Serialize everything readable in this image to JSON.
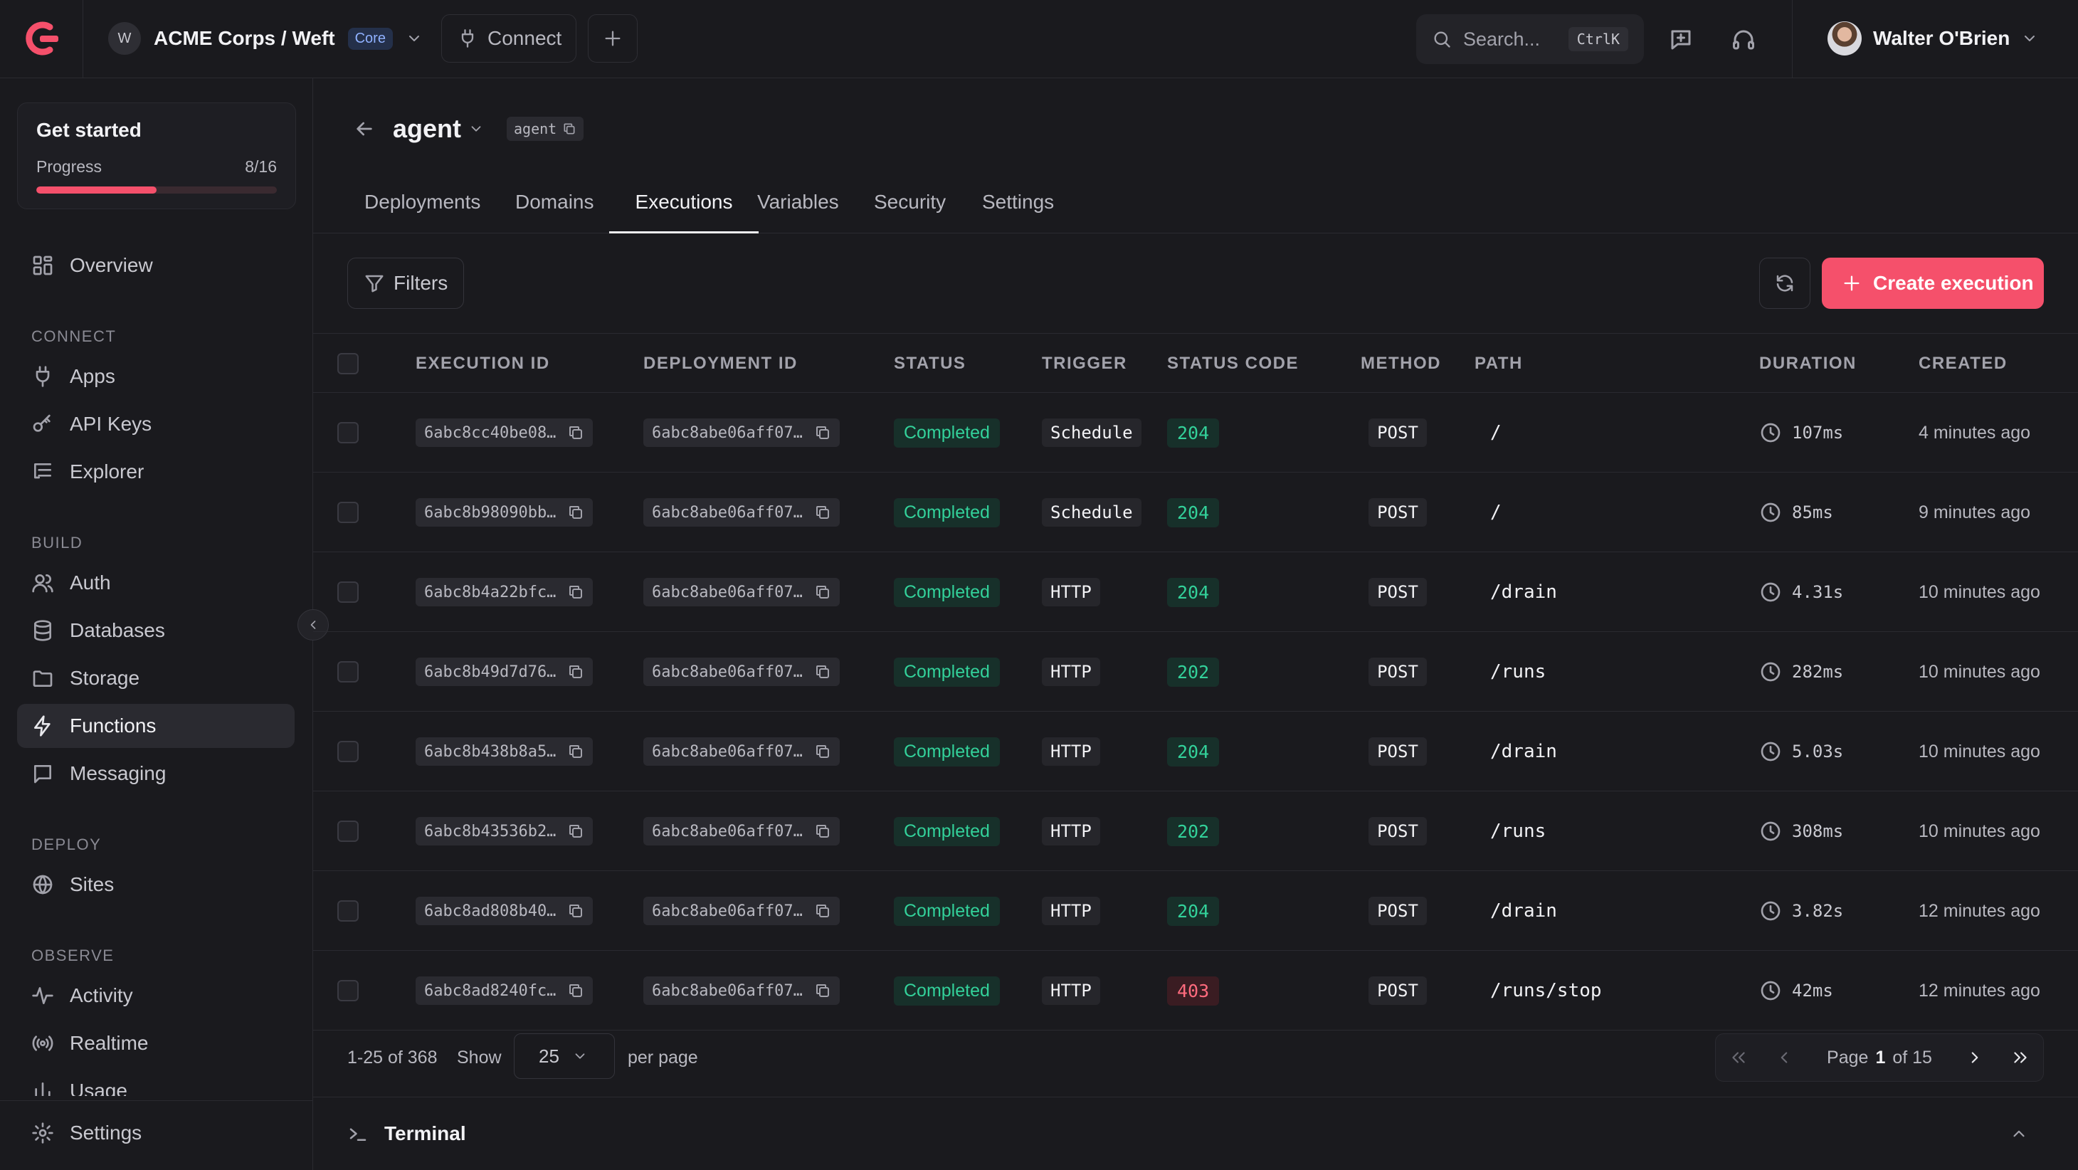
{
  "topbar": {
    "org_avatar": "W",
    "org_name": "ACME Corps / Weft",
    "org_badge": "Core",
    "connect_label": "Connect",
    "search_placeholder": "Search...",
    "search_shortcut": "CtrlK",
    "user_name": "Walter O'Brien"
  },
  "sidebar": {
    "get_started": {
      "title": "Get started",
      "progress_label": "Progress",
      "progress_text": "8/16",
      "progress_fraction": 0.5
    },
    "overview": "Overview",
    "sections": {
      "connect": "CONNECT",
      "build": "BUILD",
      "deploy": "DEPLOY",
      "observe": "OBSERVE"
    },
    "items": {
      "apps": "Apps",
      "api_keys": "API Keys",
      "explorer": "Explorer",
      "auth": "Auth",
      "databases": "Databases",
      "storage": "Storage",
      "functions": "Functions",
      "messaging": "Messaging",
      "sites": "Sites",
      "activity": "Activity",
      "realtime": "Realtime",
      "usage": "Usage",
      "settings": "Settings"
    }
  },
  "page": {
    "title": "agent",
    "id_chip": "agent",
    "tabs": [
      "Deployments",
      "Domains",
      "Executions",
      "Variables",
      "Security",
      "Settings"
    ],
    "active_tab": "Executions",
    "filters_label": "Filters",
    "create_label": "Create execution"
  },
  "table": {
    "headers": {
      "execution_id": "EXECUTION ID",
      "deployment_id": "DEPLOYMENT ID",
      "status": "STATUS",
      "trigger": "TRIGGER",
      "status_code": "STATUS CODE",
      "method": "METHOD",
      "path": "PATH",
      "duration": "DURATION",
      "created": "CREATED"
    },
    "rows": [
      {
        "execution_id": "6abc8cc40be08…",
        "deployment_id": "6abc8abe06aff07…",
        "status": "Completed",
        "trigger": "Schedule",
        "status_code": "204",
        "method": "POST",
        "path": "/",
        "duration": "107ms",
        "created": "4 minutes ago"
      },
      {
        "execution_id": "6abc8b98090bb…",
        "deployment_id": "6abc8abe06aff07…",
        "status": "Completed",
        "trigger": "Schedule",
        "status_code": "204",
        "method": "POST",
        "path": "/",
        "duration": "85ms",
        "created": "9 minutes ago"
      },
      {
        "execution_id": "6abc8b4a22bfc…",
        "deployment_id": "6abc8abe06aff07…",
        "status": "Completed",
        "trigger": "HTTP",
        "status_code": "204",
        "method": "POST",
        "path": "/drain",
        "duration": "4.31s",
        "created": "10 minutes ago"
      },
      {
        "execution_id": "6abc8b49d7d76…",
        "deployment_id": "6abc8abe06aff07…",
        "status": "Completed",
        "trigger": "HTTP",
        "status_code": "202",
        "method": "POST",
        "path": "/runs",
        "duration": "282ms",
        "created": "10 minutes ago"
      },
      {
        "execution_id": "6abc8b438b8a5…",
        "deployment_id": "6abc8abe06aff07…",
        "status": "Completed",
        "trigger": "HTTP",
        "status_code": "204",
        "method": "POST",
        "path": "/drain",
        "duration": "5.03s",
        "created": "10 minutes ago"
      },
      {
        "execution_id": "6abc8b43536b2…",
        "deployment_id": "6abc8abe06aff07…",
        "status": "Completed",
        "trigger": "HTTP",
        "status_code": "202",
        "method": "POST",
        "path": "/runs",
        "duration": "308ms",
        "created": "10 minutes ago"
      },
      {
        "execution_id": "6abc8ad808b40…",
        "deployment_id": "6abc8abe06aff07…",
        "status": "Completed",
        "trigger": "HTTP",
        "status_code": "204",
        "method": "POST",
        "path": "/drain",
        "duration": "3.82s",
        "created": "12 minutes ago"
      },
      {
        "execution_id": "6abc8ad8240fc…",
        "deployment_id": "6abc8abe06aff07…",
        "status": "Completed",
        "trigger": "HTTP",
        "status_code": "403",
        "method": "POST",
        "path": "/runs/stop",
        "duration": "42ms",
        "created": "12 minutes ago"
      }
    ]
  },
  "pagination": {
    "range_text": "1-25 of 368",
    "show_label": "Show",
    "per_page_value": "25",
    "per_page_label": "per page",
    "page_label": "Page",
    "current_page": "1",
    "of_text": "of 15"
  },
  "terminal": {
    "label": "Terminal"
  },
  "colors": {
    "accent": "#f5506b",
    "success": "#33d19a",
    "error": "#ff6b7e"
  }
}
